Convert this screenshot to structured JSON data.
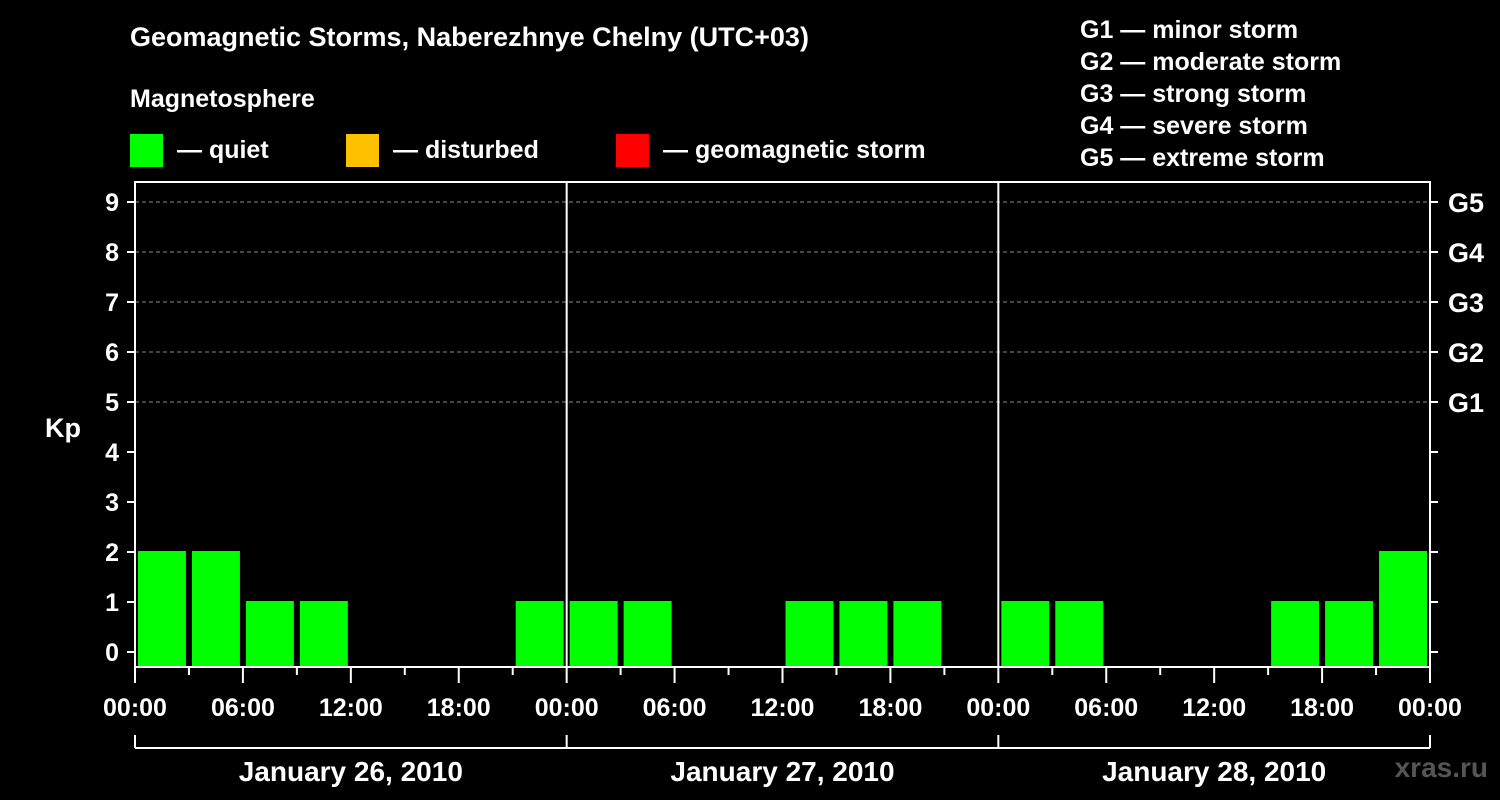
{
  "title": "Geomagnetic Storms, Naberezhnye Chelny (UTC+03)",
  "legend": {
    "heading": "Magnetosphere",
    "items": [
      {
        "label": "— quiet",
        "color": "#00ff00"
      },
      {
        "label": "— disturbed",
        "color": "#ffc000"
      },
      {
        "label": "— geomagnetic storm",
        "color": "#ff0000"
      }
    ]
  },
  "storm_scale": [
    "G1 — minor storm",
    "G2 — moderate storm",
    "G3 — strong storm",
    "G4 — severe storm",
    "G5 — extreme storm"
  ],
  "watermark": "xras.ru",
  "chart_data": {
    "type": "bar",
    "ylabel": "Kp",
    "ylim": [
      0,
      9
    ],
    "yticks": [
      "0",
      "1",
      "2",
      "3",
      "4",
      "5",
      "6",
      "7",
      "8",
      "9"
    ],
    "right_axis": [
      {
        "kp": 5,
        "label": "G1"
      },
      {
        "kp": 6,
        "label": "G2"
      },
      {
        "kp": 7,
        "label": "G3"
      },
      {
        "kp": 8,
        "label": "G4"
      },
      {
        "kp": 9,
        "label": "G5"
      }
    ],
    "grid": "dashed horizontal at Kp 5-9",
    "bar_color": "#00ff00",
    "xticks": [
      "00:00",
      "06:00",
      "12:00",
      "18:00",
      "00:00",
      "06:00",
      "12:00",
      "18:00",
      "00:00",
      "06:00",
      "12:00",
      "18:00",
      "00:00"
    ],
    "days": [
      "January 26, 2010",
      "January 27, 2010",
      "January 28, 2010"
    ],
    "interval_hours": 3,
    "values": [
      2,
      2,
      1,
      1,
      0,
      0,
      0,
      1,
      1,
      1,
      0,
      0,
      1,
      1,
      1,
      0,
      1,
      1,
      0,
      0,
      0,
      1,
      1,
      2
    ]
  }
}
